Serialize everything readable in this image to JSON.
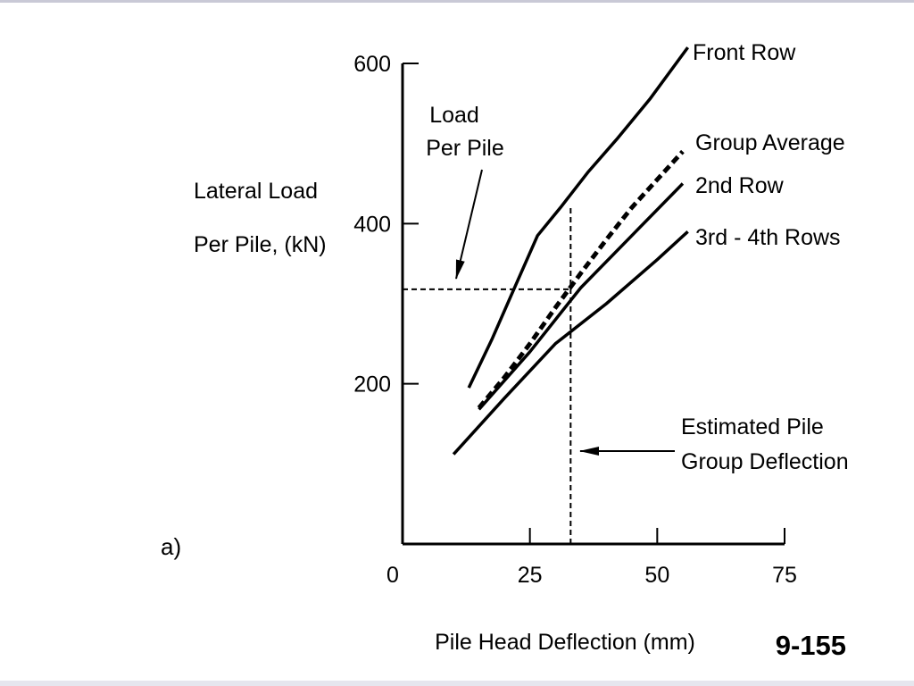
{
  "slide": {
    "page_number": "9-155",
    "panel_label": "a)"
  },
  "chart_data": {
    "type": "line",
    "ylabel_lines": [
      "Lateral Load",
      "Per Pile, (kN)"
    ],
    "xlabel": "Pile Head Deflection (mm)",
    "xlim": [
      0,
      75
    ],
    "ylim": [
      0,
      600
    ],
    "x_ticks": [
      0,
      25,
      50,
      75
    ],
    "y_ticks": [
      200,
      400,
      600
    ],
    "series": [
      {
        "name": "Front Row",
        "style": "solid",
        "x": [
          13,
          17.5,
          22,
          26.5,
          31,
          36.5,
          42,
          48.5,
          56
        ],
        "y": [
          195,
          255,
          320,
          385,
          420,
          465,
          505,
          555,
          620
        ]
      },
      {
        "name": "Group Average",
        "style": "dashed",
        "x": [
          15,
          20,
          25,
          30,
          35,
          40,
          45,
          50,
          55
        ],
        "y": [
          170,
          208,
          250,
          295,
          338,
          380,
          420,
          455,
          490
        ]
      },
      {
        "name": "2nd Row",
        "style": "solid",
        "x": [
          15,
          25,
          35,
          45,
          55
        ],
        "y": [
          168,
          240,
          320,
          385,
          450
        ]
      },
      {
        "name": "3rd - 4th Rows",
        "style": "solid",
        "x": [
          10,
          20,
          30,
          40,
          50,
          56
        ],
        "y": [
          112,
          182,
          250,
          300,
          355,
          390
        ]
      }
    ],
    "reference_lines": {
      "deflection_x": 33,
      "load_y": 318
    },
    "annotations": {
      "load_per_pile": [
        "Load",
        "Per Pile"
      ],
      "estimated_deflection": [
        "Estimated Pile",
        "Group Deflection"
      ]
    }
  }
}
